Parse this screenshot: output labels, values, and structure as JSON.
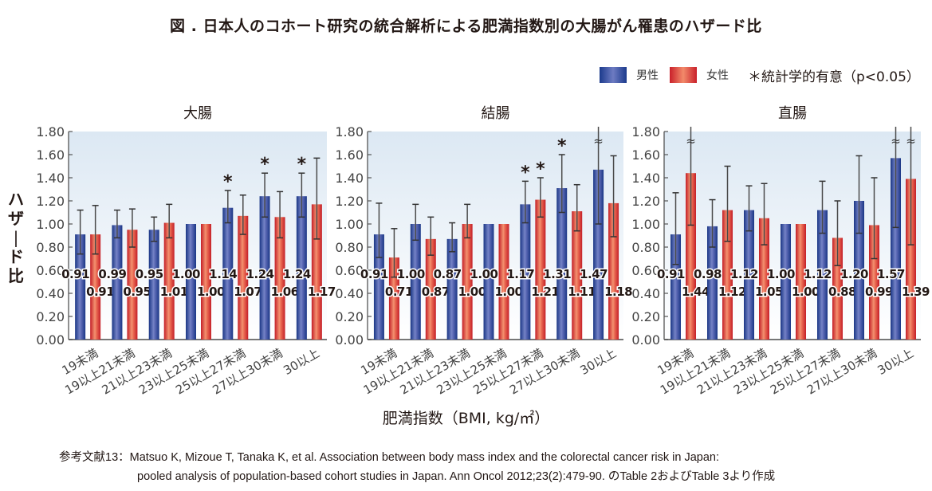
{
  "figure": {
    "title": "図 . 日本人のコホート研究の統合解析による肥満指数別の大腸がん罹患のハザード比",
    "legend": {
      "male_label": "男性",
      "female_label": "女性",
      "note": "＊統計学的有意（p<0.05）"
    },
    "ylabel": "ハザード比",
    "xlabel": "肥満指数（BMI, kg/㎡）",
    "reference_prefix": "参考文献13：",
    "reference_line1": "Matsuo K, Mizoue T, Tanaka K, et al. Association between body mass index and the colorectal cancer risk in Japan:",
    "reference_line2": "pooled analysis of population-based cohort studies in Japan. Ann Oncol 2012;23(2):479-90. のTable 2およびTable 3より作成",
    "colors": {
      "male": "#1b3a8c",
      "female": "#c9202a",
      "bg_top": "#dfe9f3",
      "bg_bottom": "#ffffff",
      "errorbar": "#4a4a4a"
    }
  },
  "chart_data": [
    {
      "type": "bar",
      "title": "大腸",
      "xlabel": "肥満指数（BMI, kg/㎡）",
      "ylabel": "ハザード比",
      "ylim": [
        0,
        1.8
      ],
      "yticks": [
        "0.00",
        "0.20",
        "0.40",
        "0.60",
        "0.80",
        "1.00",
        "1.20",
        "1.40",
        "1.60",
        "1.80"
      ],
      "categories": [
        "19未満",
        "19以上21未満",
        "21以上23未満",
        "23以上25未満",
        "25以上27未満",
        "27以上30未満",
        "30以上"
      ],
      "series": [
        {
          "name": "男性",
          "values": [
            0.91,
            0.99,
            0.95,
            1.0,
            1.14,
            1.24,
            1.24
          ],
          "labels": [
            "0.91",
            "0.99",
            "0.95",
            "1.00",
            "1.14",
            "1.24",
            "1.24"
          ],
          "ci_low": [
            0.74,
            0.88,
            0.85,
            null,
            1.01,
            1.06,
            1.06
          ],
          "ci_high": [
            1.12,
            1.12,
            1.06,
            null,
            1.29,
            1.44,
            1.44
          ],
          "significant": [
            false,
            false,
            false,
            false,
            true,
            true,
            true
          ],
          "ci_break": [
            false,
            false,
            false,
            false,
            false,
            false,
            false
          ]
        },
        {
          "name": "女性",
          "values": [
            0.91,
            0.95,
            1.01,
            1.0,
            1.07,
            1.06,
            1.17
          ],
          "labels": [
            "0.91",
            "0.95",
            "1.01",
            "1.00",
            "1.07",
            "1.06",
            "1.17"
          ],
          "ci_low": [
            0.74,
            0.8,
            0.88,
            null,
            0.91,
            0.88,
            0.87
          ],
          "ci_high": [
            1.16,
            1.13,
            1.17,
            null,
            1.25,
            1.28,
            1.57
          ],
          "significant": [
            false,
            false,
            false,
            false,
            false,
            false,
            false
          ],
          "ci_break": [
            false,
            false,
            false,
            false,
            false,
            false,
            false
          ]
        }
      ]
    },
    {
      "type": "bar",
      "title": "結腸",
      "xlabel": "肥満指数（BMI, kg/㎡）",
      "ylabel": "ハザード比",
      "ylim": [
        0,
        1.8
      ],
      "yticks": [
        "0.00",
        "0.20",
        "0.40",
        "0.60",
        "0.80",
        "1.00",
        "1.20",
        "1.40",
        "1.60",
        "1.80"
      ],
      "categories": [
        "19未満",
        "19以上21未満",
        "21以上23未満",
        "23以上25未満",
        "25以上27未満",
        "27以上30未満",
        "30以上"
      ],
      "series": [
        {
          "name": "男性",
          "values": [
            0.91,
            1.0,
            0.87,
            1.0,
            1.17,
            1.31,
            1.47
          ],
          "labels": [
            "0.91",
            "1.00",
            "0.87",
            "1.00",
            "1.17",
            "1.31",
            "1.47"
          ],
          "ci_low": [
            0.71,
            0.86,
            0.76,
            null,
            1.01,
            1.1,
            1.0
          ],
          "ci_high": [
            1.18,
            1.17,
            1.01,
            null,
            1.37,
            1.6,
            null
          ],
          "significant": [
            false,
            false,
            false,
            false,
            true,
            true,
            false
          ],
          "ci_break": [
            false,
            false,
            false,
            false,
            false,
            false,
            true
          ]
        },
        {
          "name": "女性",
          "values": [
            0.71,
            0.87,
            1.0,
            1.0,
            1.21,
            1.11,
            1.18
          ],
          "labels": [
            "0.71",
            "0.87",
            "1.00",
            "1.00",
            "1.21",
            "1.11",
            "1.18"
          ],
          "ci_low": [
            0.54,
            0.73,
            0.88,
            null,
            1.06,
            0.94,
            0.89
          ],
          "ci_high": [
            0.96,
            1.06,
            1.17,
            null,
            1.4,
            1.34,
            1.59
          ],
          "significant": [
            false,
            false,
            false,
            false,
            true,
            false,
            false
          ],
          "ci_break": [
            false,
            false,
            false,
            false,
            false,
            false,
            false
          ]
        }
      ]
    },
    {
      "type": "bar",
      "title": "直腸",
      "xlabel": "肥満指数（BMI, kg/㎡）",
      "ylabel": "ハザード比",
      "ylim": [
        0,
        1.8
      ],
      "yticks": [
        "0.00",
        "0.20",
        "0.40",
        "0.60",
        "0.80",
        "1.00",
        "1.20",
        "1.40",
        "1.60",
        "1.80"
      ],
      "categories": [
        "19未満",
        "19以上21未満",
        "21以上23未満",
        "23以上25未満",
        "25以上27未満",
        "27以上30未満",
        "30以上"
      ],
      "series": [
        {
          "name": "男性",
          "values": [
            0.91,
            0.98,
            1.12,
            1.0,
            1.12,
            1.2,
            1.57
          ],
          "labels": [
            "0.91",
            "0.98",
            "1.12",
            "1.00",
            "1.12",
            "1.20",
            "1.57"
          ],
          "ci_low": [
            0.65,
            0.8,
            0.94,
            null,
            0.92,
            0.92,
            0.97
          ],
          "ci_high": [
            1.27,
            1.21,
            1.33,
            null,
            1.37,
            1.59,
            null
          ],
          "significant": [
            false,
            false,
            false,
            false,
            false,
            false,
            false
          ],
          "ci_break": [
            false,
            false,
            false,
            false,
            false,
            false,
            true
          ]
        },
        {
          "name": "女性",
          "values": [
            1.44,
            1.12,
            1.05,
            1.0,
            0.88,
            0.99,
            1.39
          ],
          "labels": [
            "1.44",
            "1.12",
            "1.05",
            "1.00",
            "0.88",
            "0.99",
            "1.39"
          ],
          "ci_low": [
            0.99,
            0.85,
            0.82,
            null,
            0.64,
            0.7,
            0.82
          ],
          "ci_high": [
            null,
            1.5,
            1.35,
            null,
            1.2,
            1.4,
            null
          ],
          "significant": [
            false,
            false,
            false,
            false,
            false,
            false,
            false
          ],
          "ci_break": [
            true,
            false,
            false,
            false,
            false,
            false,
            true
          ]
        }
      ]
    }
  ]
}
